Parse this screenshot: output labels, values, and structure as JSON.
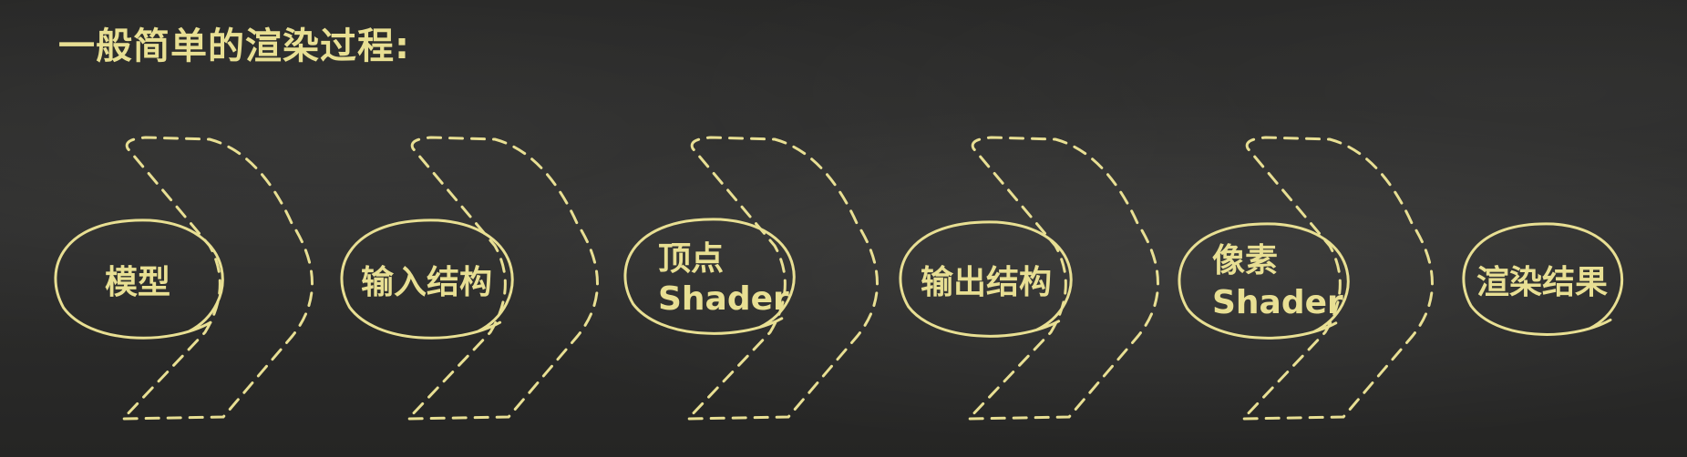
{
  "title": "一般简单的渲染过程:",
  "stages": [
    {
      "id": "model",
      "lines": [
        "模型"
      ]
    },
    {
      "id": "input-structure",
      "lines": [
        "输入结构"
      ]
    },
    {
      "id": "vertex-shader",
      "lines": [
        "顶点",
        "Shader"
      ]
    },
    {
      "id": "output-structure",
      "lines": [
        "输出结构"
      ]
    },
    {
      "id": "pixel-shader",
      "lines": [
        "像素",
        "Shader"
      ]
    },
    {
      "id": "render-result",
      "lines": [
        "渲染结果"
      ]
    }
  ],
  "colors": {
    "chalk": "#e8df93",
    "board": "#2b2b2a"
  }
}
